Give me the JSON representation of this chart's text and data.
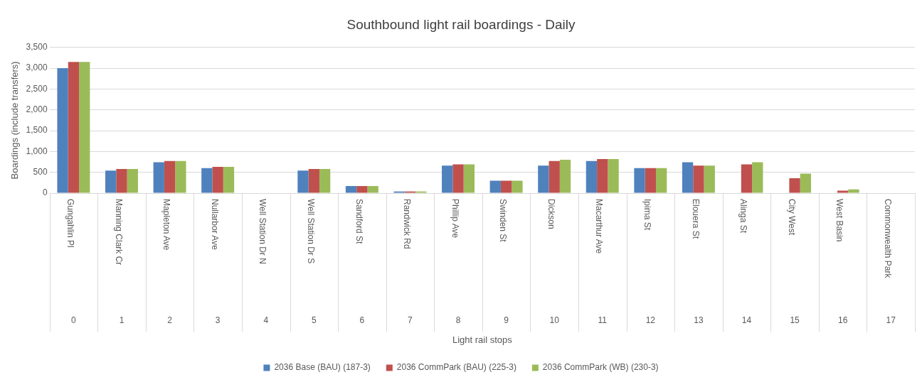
{
  "chart_data": {
    "type": "bar",
    "title": "Southbound light rail boardings - Daily",
    "ylabel": "Boardings (include transfers)",
    "categories": [
      "Gungahlin Pl",
      "Manning Clark Cr",
      "Mapleton Ave",
      "Nullarbor Ave",
      "Well Station Dr N",
      "Well Station Dr S",
      "Sandford St",
      "Randwick Rd",
      "Phillip Ave",
      "Swinden St",
      "Dickson",
      "Macarthur Ave",
      "Ipima St",
      "Elouera St",
      "Alinga St",
      "City West",
      "West Basin",
      "Commonwealth Park"
    ],
    "annotations": [
      "0",
      "1",
      "2",
      "3",
      "4",
      "5",
      "6",
      "7",
      "8",
      "9",
      "10",
      "11",
      "12",
      "13",
      "14",
      "15",
      "16",
      "17",
      "Light rail stops"
    ],
    "series": [
      {
        "name": "2036 Base (BAU) (187-3)",
        "color": "#4f81bd",
        "values": [
          3000,
          540,
          740,
          600,
          null,
          540,
          170,
          40,
          660,
          300,
          660,
          770,
          600,
          740,
          null,
          null,
          null,
          null
        ]
      },
      {
        "name": "2036 CommPark (BAU) (225-3)",
        "color": "#c0504d",
        "values": [
          3150,
          580,
          770,
          630,
          null,
          580,
          170,
          40,
          690,
          300,
          770,
          820,
          600,
          660,
          690,
          360,
          60,
          null
        ]
      },
      {
        "name": "2036 CommPark (WB) (230-3)",
        "color": "#9bbb59",
        "values": [
          3150,
          580,
          770,
          630,
          null,
          580,
          170,
          40,
          690,
          300,
          800,
          820,
          600,
          660,
          740,
          470,
          90,
          null
        ]
      }
    ],
    "ylim": [
      0,
      3500
    ],
    "yticks": [
      0,
      500,
      {
        "value": 1000,
        "label": "1,000"
      },
      {
        "value": 1500,
        "label": "1,500"
      },
      {
        "value": 2000,
        "label": "2,000"
      },
      {
        "value": 2500,
        "label": "2,500"
      },
      {
        "value": 3000,
        "label": "3,000"
      },
      {
        "value": 3500,
        "label": "3,500"
      }
    ],
    "grid": "y",
    "legend": "bottom"
  }
}
